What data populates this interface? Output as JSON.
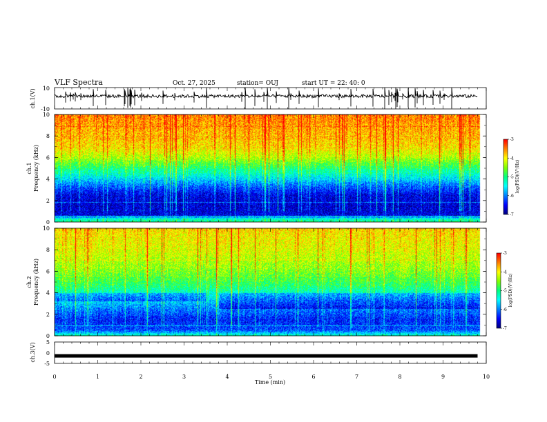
{
  "header": {
    "title": "VLF Spectra",
    "date": "Oct. 27, 2025",
    "station": "station= OUJ",
    "start": "start  UT  =   22: 40: 0"
  },
  "chart_data": [
    {
      "type": "line",
      "name": "ch1-waveform",
      "ylabel": "ch.1(V)",
      "ylim": [
        -10,
        10
      ],
      "yticks": [
        "10",
        "-10"
      ],
      "baseline": 2,
      "color": "#000000"
    },
    {
      "type": "heatmap",
      "name": "ch1-spectrogram",
      "ylabel": "ch.1\nFrequency (kHz)",
      "ylim": [
        0,
        10
      ],
      "yticks": [
        "0",
        "2",
        "4",
        "6",
        "8",
        "10"
      ],
      "xlim": [
        0,
        9.85
      ],
      "profile": [
        {
          "f": 0.0,
          "level": -5.0
        },
        {
          "f": 0.3,
          "level": -5.3
        },
        {
          "f": 0.6,
          "level": -6.6
        },
        {
          "f": 1.5,
          "level": -6.7
        },
        {
          "f": 2.5,
          "level": -6.6
        },
        {
          "f": 3.5,
          "level": -6.0
        },
        {
          "f": 4.3,
          "level": -5.4
        },
        {
          "f": 5.0,
          "level": -5.0
        },
        {
          "f": 6.0,
          "level": -4.3
        },
        {
          "f": 7.0,
          "level": -3.9
        },
        {
          "f": 10.0,
          "level": -3.5
        }
      ],
      "colorbar": {
        "label": "log(PSD)(V²/Hz)",
        "range": [
          -7,
          -3
        ],
        "ticks": [
          "-3",
          "-4",
          "-5",
          "-6",
          "-7"
        ]
      }
    },
    {
      "type": "heatmap",
      "name": "ch2-spectrogram",
      "ylabel": "ch.2\nFrequency (kHz)",
      "ylim": [
        0,
        10
      ],
      "yticks": [
        "0",
        "2",
        "4",
        "6",
        "8",
        "10"
      ],
      "xlim": [
        0,
        9.85
      ],
      "profile": [
        {
          "f": 0.0,
          "level": -5.2
        },
        {
          "f": 0.5,
          "level": -6.2
        },
        {
          "f": 1.5,
          "level": -6.4
        },
        {
          "f": 2.5,
          "level": -6.0
        },
        {
          "f": 3.3,
          "level": -5.6
        },
        {
          "f": 4.5,
          "level": -5.0
        },
        {
          "f": 6.0,
          "level": -4.5
        },
        {
          "f": 8.0,
          "level": -4.1
        },
        {
          "f": 10.0,
          "level": -3.9
        }
      ],
      "colorbar": {
        "label": "log(PSD)(V²/Hz)",
        "range": [
          -7,
          -3
        ],
        "ticks": [
          "-3",
          "-4",
          "-5",
          "-6",
          "-7"
        ]
      }
    },
    {
      "type": "line",
      "name": "ch3-waveform",
      "ylabel": "ch.3(V)",
      "ylim": [
        -5,
        5
      ],
      "yticks": [
        "5",
        "0",
        "-5"
      ],
      "baseline": -1.5,
      "color": "#000000"
    }
  ],
  "xaxis": {
    "label": "Time (min)",
    "range": [
      0,
      10
    ],
    "ticks": [
      "0",
      "1",
      "2",
      "3",
      "4",
      "5",
      "6",
      "7",
      "8",
      "9",
      "10"
    ]
  },
  "colormap": [
    "#000080",
    "#0000ff",
    "#0080ff",
    "#00ffff",
    "#00ff80",
    "#80ff00",
    "#ffff00",
    "#ff8000",
    "#ff0000"
  ]
}
